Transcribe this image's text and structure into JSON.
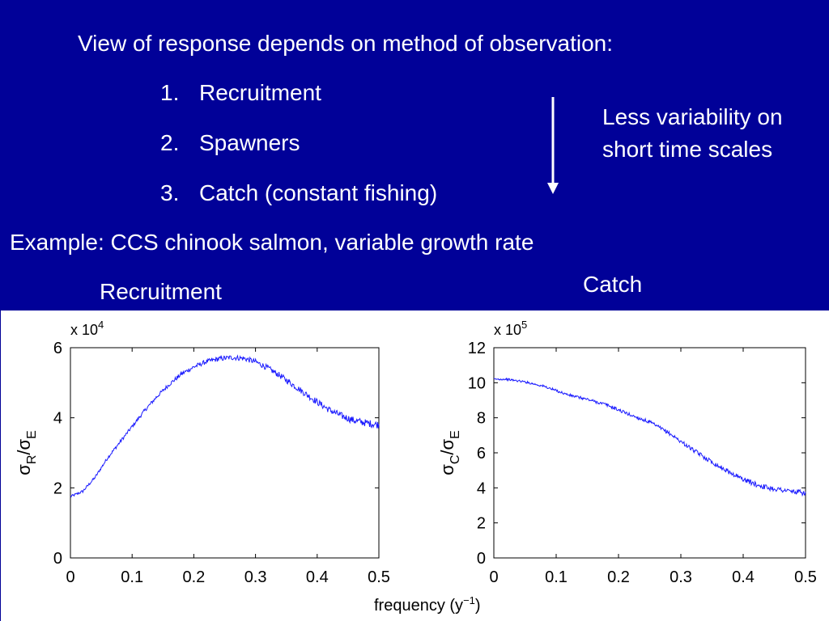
{
  "slide": {
    "heading": "View of response depends on method of observation:",
    "list": [
      {
        "num": "1.",
        "label": "Recruitment"
      },
      {
        "num": "2.",
        "label": "Spawners"
      },
      {
        "num": "3.",
        "label": "Catch (constant fishing)"
      }
    ],
    "note": "Less variability on short time scales",
    "example": "Example: CCS chinook salmon, variable growth rate",
    "label_recruitment": "Recruitment",
    "label_catch": "Catch"
  },
  "colors": {
    "background": "#010198",
    "line": "#1a1aff",
    "text": "#ffffff"
  },
  "chart_data": [
    {
      "type": "line",
      "x_label": "",
      "y_label": "σR/σE",
      "y_label_main": "σ",
      "y_label_sub1": "R",
      "y_label_mid": "/σ",
      "y_label_sub2": "E",
      "scale_note": "x 10",
      "scale_exp": "4",
      "xlim": [
        0,
        0.5
      ],
      "ylim": [
        0,
        6
      ],
      "x_ticks": [
        "0",
        "0.1",
        "0.2",
        "0.3",
        "0.4",
        "0.5"
      ],
      "y_ticks": [
        "0",
        "2",
        "4",
        "6"
      ],
      "grid": false,
      "noise": 0.09,
      "series": [
        {
          "points": [
            [
              0,
              1.75
            ],
            [
              0.02,
              1.9
            ],
            [
              0.04,
              2.3
            ],
            [
              0.06,
              2.85
            ],
            [
              0.08,
              3.3
            ],
            [
              0.1,
              3.75
            ],
            [
              0.12,
              4.2
            ],
            [
              0.14,
              4.6
            ],
            [
              0.16,
              4.95
            ],
            [
              0.18,
              5.25
            ],
            [
              0.2,
              5.45
            ],
            [
              0.22,
              5.6
            ],
            [
              0.24,
              5.68
            ],
            [
              0.26,
              5.72
            ],
            [
              0.28,
              5.7
            ],
            [
              0.3,
              5.6
            ],
            [
              0.32,
              5.42
            ],
            [
              0.34,
              5.2
            ],
            [
              0.36,
              4.95
            ],
            [
              0.38,
              4.7
            ],
            [
              0.4,
              4.45
            ],
            [
              0.42,
              4.22
            ],
            [
              0.44,
              4.05
            ],
            [
              0.46,
              3.92
            ],
            [
              0.48,
              3.85
            ],
            [
              0.5,
              3.8
            ]
          ]
        }
      ]
    },
    {
      "type": "line",
      "x_label": "frequency (y",
      "x_label_exp": "−1",
      "x_label_end": ")",
      "y_label": "σC/σE",
      "y_label_main": "σ",
      "y_label_sub1": "C",
      "y_label_mid": "/σ",
      "y_label_sub2": "E",
      "scale_note": "x 10",
      "scale_exp": "5",
      "xlim": [
        0,
        0.5
      ],
      "ylim": [
        0,
        12
      ],
      "x_ticks": [
        "0",
        "0.1",
        "0.2",
        "0.3",
        "0.4",
        "0.5"
      ],
      "y_ticks": [
        "0",
        "2",
        "4",
        "6",
        "8",
        "10",
        "12"
      ],
      "grid": false,
      "noise": 0.13,
      "series": [
        {
          "points": [
            [
              0,
              10.2
            ],
            [
              0.02,
              10.2
            ],
            [
              0.05,
              10.05
            ],
            [
              0.08,
              9.8
            ],
            [
              0.1,
              9.55
            ],
            [
              0.12,
              9.3
            ],
            [
              0.15,
              9.05
            ],
            [
              0.18,
              8.75
            ],
            [
              0.2,
              8.45
            ],
            [
              0.22,
              8.15
            ],
            [
              0.25,
              7.75
            ],
            [
              0.28,
              7.15
            ],
            [
              0.3,
              6.65
            ],
            [
              0.32,
              6.15
            ],
            [
              0.34,
              5.7
            ],
            [
              0.36,
              5.25
            ],
            [
              0.38,
              4.85
            ],
            [
              0.4,
              4.5
            ],
            [
              0.42,
              4.2
            ],
            [
              0.44,
              4.0
            ],
            [
              0.46,
              3.9
            ],
            [
              0.48,
              3.78
            ],
            [
              0.5,
              3.7
            ]
          ]
        }
      ]
    }
  ]
}
